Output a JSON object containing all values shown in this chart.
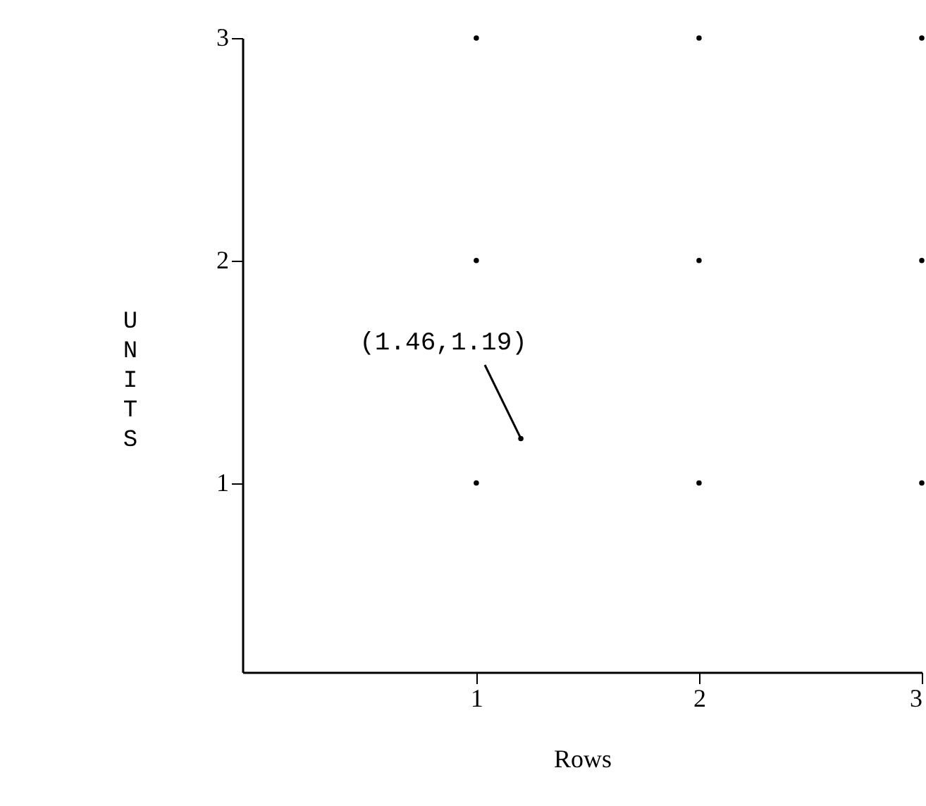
{
  "chart_data": {
    "type": "scatter",
    "xlabel": "Rows",
    "ylabel": "UNITS",
    "series": [
      {
        "color": "#000000",
        "x": [
          1,
          2,
          3,
          1,
          2,
          3,
          1,
          2,
          3
        ],
        "values": [
          3,
          3,
          3,
          2,
          2,
          2,
          1,
          1,
          1
        ]
      },
      {
        "color": "#000000",
        "x": [
          1.2
        ],
        "values": [
          1.2
        ]
      }
    ],
    "annotations": [
      {
        "text": "(1.46,1.19)",
        "x": 1.2,
        "y": 1.2
      }
    ],
    "xlim": [
      -0.05,
      3
    ],
    "ylim": [
      0.15,
      3
    ],
    "xticks": [
      1,
      2,
      3
    ],
    "yticks": [
      1,
      2,
      3
    ],
    "grid": false
  }
}
